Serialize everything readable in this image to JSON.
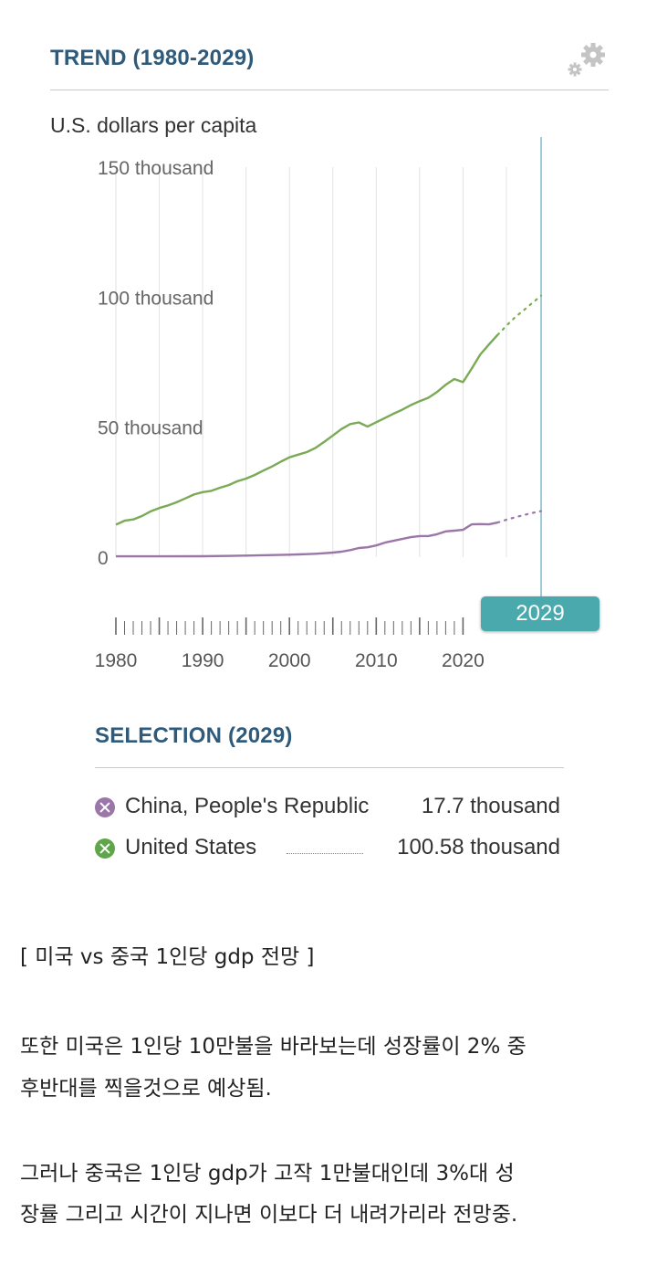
{
  "header": {
    "title": "TREND (1980-2029)"
  },
  "chart_data": {
    "type": "line",
    "ylabel": "U.S. dollars per capita",
    "y_ticks": [
      {
        "value": 150000,
        "label": "150 thousand"
      },
      {
        "value": 100000,
        "label": "100 thousand"
      },
      {
        "value": 50000,
        "label": "50 thousand"
      },
      {
        "value": 0,
        "label": "0"
      }
    ],
    "ylim": [
      0,
      150000
    ],
    "x_tick_labels": [
      {
        "year": 1980,
        "label": "1980"
      },
      {
        "year": 1990,
        "label": "1990"
      },
      {
        "year": 2000,
        "label": "2000"
      },
      {
        "year": 2010,
        "label": "2010"
      },
      {
        "year": 2020,
        "label": "2020"
      }
    ],
    "xlim": [
      1980,
      2029
    ],
    "selected_year_label": "2029",
    "grid": "vertical",
    "projection_start": 2024,
    "series": [
      {
        "name": "United States",
        "color": "#7aaa55",
        "x": [
          1980,
          1981,
          1982,
          1983,
          1984,
          1985,
          1986,
          1987,
          1988,
          1989,
          1990,
          1991,
          1992,
          1993,
          1994,
          1995,
          1996,
          1997,
          1998,
          1999,
          2000,
          2001,
          2002,
          2003,
          2004,
          2005,
          2006,
          2007,
          2008,
          2009,
          2010,
          2011,
          2012,
          2013,
          2014,
          2015,
          2016,
          2017,
          2018,
          2019,
          2020,
          2021,
          2022,
          2023,
          2024,
          2025,
          2026,
          2027,
          2028,
          2029
        ],
        "values": [
          12500,
          14000,
          14500,
          15800,
          17600,
          18900,
          19900,
          21100,
          22600,
          24100,
          25000,
          25500,
          26700,
          27700,
          29200,
          30200,
          31600,
          33300,
          34900,
          36700,
          38400,
          39400,
          40400,
          42000,
          44300,
          46800,
          49300,
          51200,
          51800,
          50200,
          51900,
          53500,
          55200,
          56700,
          58500,
          60000,
          61300,
          63500,
          66300,
          68500,
          67300,
          72500,
          78000,
          81800,
          85500,
          89000,
          92300,
          95000,
          97800,
          100580
        ]
      },
      {
        "name": "China, People's Republic",
        "color": "#9b76a8",
        "x": [
          1980,
          1985,
          1990,
          1995,
          2000,
          2001,
          2002,
          2003,
          2004,
          2005,
          2006,
          2007,
          2008,
          2009,
          2010,
          2011,
          2012,
          2013,
          2014,
          2015,
          2016,
          2017,
          2018,
          2019,
          2020,
          2021,
          2022,
          2023,
          2024,
          2025,
          2026,
          2027,
          2028,
          2029
        ],
        "values": [
          300,
          300,
          350,
          600,
          950,
          1050,
          1150,
          1300,
          1500,
          1750,
          2100,
          2700,
          3500,
          3800,
          4500,
          5600,
          6300,
          7000,
          7700,
          8100,
          8100,
          8800,
          9900,
          10200,
          10500,
          12600,
          12700,
          12600,
          13300,
          14400,
          15300,
          16200,
          17000,
          17700
        ]
      }
    ]
  },
  "selection": {
    "title": "SELECTION (2029)",
    "items": [
      {
        "name": "China, People's Republic",
        "value": "17.7 thousand",
        "color": "#9b76a8"
      },
      {
        "name": "United States",
        "value": "100.58 thousand",
        "color": "#5fa64a"
      }
    ]
  },
  "article": {
    "caption": "[ 미국 vs 중국 1인당 gdp 전망 ]",
    "para1_line1": "또한 미국은 1인당 10만불을 바라보는데 성장률이 2% 중",
    "para1_line2": "후반대를 찍을것으로 예상됨.",
    "para2_line1": "그러나 중국은 1인당 gdp가 고작 1만불대인데 3%대 성",
    "para2_line2": "장률 그리고 시간이 지나면 이보다 더 내려가리라 전망중."
  }
}
